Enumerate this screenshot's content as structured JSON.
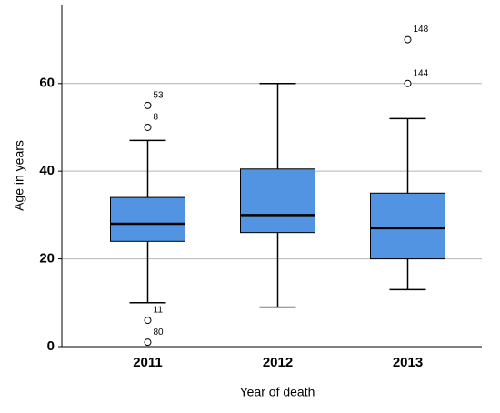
{
  "chart_data": {
    "type": "box",
    "x_label": "Year of death",
    "y_label": "Age in years",
    "categories": [
      "2011",
      "2012",
      "2013"
    ],
    "color": "#5294e2",
    "ylim": [
      0,
      78
    ],
    "yticks": [
      0,
      20,
      40,
      60
    ],
    "grid": true,
    "boxes": [
      {
        "whisker_low": 10,
        "q1": 24,
        "median": 28,
        "q3": 34,
        "whisker_high": 47,
        "outliers": [
          {
            "value": 55,
            "case": "53"
          },
          {
            "value": 50,
            "case": "8"
          },
          {
            "value": 6,
            "case": "11"
          },
          {
            "value": 1,
            "case": "80"
          }
        ]
      },
      {
        "whisker_low": 9,
        "q1": 26,
        "median": 30,
        "q3": 40.5,
        "whisker_high": 60,
        "outliers": []
      },
      {
        "whisker_low": 13,
        "q1": 20,
        "median": 27,
        "q3": 35,
        "whisker_high": 52,
        "outliers": [
          {
            "value": 70,
            "case": "148"
          },
          {
            "value": 60,
            "case": "144"
          }
        ]
      }
    ]
  }
}
